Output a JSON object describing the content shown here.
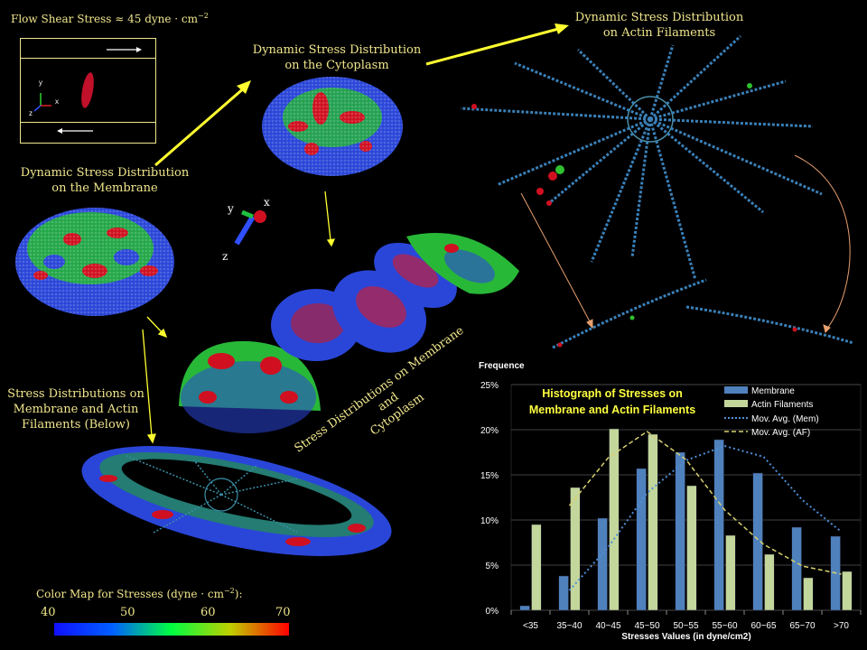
{
  "flow_title_prefix": "Flow Shear Stress ≈ 45 dyne · cm",
  "flow_title_exp": "−2",
  "inset_axes": {
    "y": "y",
    "x": "x",
    "z": "z"
  },
  "membrane_label_1": "Dynamic Stress Distribution",
  "membrane_label_2": "on the Membrane",
  "cytoplasm_label_1": "Dynamic Stress Distribution",
  "cytoplasm_label_2": "on the Cytoplasm",
  "actin_label_1": "Dynamic Stress Distribution",
  "actin_label_2": "on Actin Filaments",
  "axes3d": {
    "y": "y",
    "x": "x",
    "z": "z"
  },
  "below_label_1": "Stress Distributions on",
  "below_label_2": "Membrane and  Actin",
  "below_label_3": "Filaments (Below)",
  "rotated_label_1": "Stress Distributions on Membrane and",
  "rotated_label_2": "Cytoplasm",
  "colormap": {
    "title_prefix": "Color Map for Stresses  (dyne · cm",
    "title_exp": "−2",
    "title_suffix": "):",
    "ticks": [
      "40",
      "50",
      "60",
      "70"
    ],
    "colors": [
      "#1010ff",
      "#00ff40",
      "#ff0000"
    ]
  },
  "chart_data": {
    "type": "bar",
    "title_line1": "Histograph of Stresses on",
    "title_line2": "Membrane and Actin Filaments",
    "ylabel": "Frequence",
    "xlabel": "Stresses Values (in dyne/cm2)",
    "categories": [
      "<35",
      "35~40",
      "40~45",
      "45~50",
      "50~55",
      "55~60",
      "60~65",
      "65~70",
      ">70"
    ],
    "yticks": [
      "0%",
      "5%",
      "10%",
      "15%",
      "20%",
      "25%"
    ],
    "ylim": [
      0,
      25
    ],
    "series": [
      {
        "name": "Membrane",
        "color": "#4f81bd",
        "values": [
          0.5,
          3.8,
          10.2,
          15.7,
          17.5,
          18.9,
          15.2,
          9.2,
          8.2
        ]
      },
      {
        "name": "Actin Filaments",
        "color": "#c3d69b",
        "values": [
          9.5,
          13.6,
          20.1,
          19.5,
          13.8,
          8.3,
          6.2,
          3.6,
          4.3
        ]
      }
    ],
    "trendlines": [
      {
        "name": "Mov. Avg. (Mem)",
        "color": "#4f8fd8",
        "values": [
          null,
          2.2,
          7.0,
          13.0,
          16.6,
          18.2,
          17.0,
          12.2,
          8.7
        ]
      },
      {
        "name": "Mov. Avg. (AF)",
        "color": "#d8d070",
        "values": [
          null,
          11.6,
          16.9,
          19.8,
          16.7,
          11.1,
          7.3,
          4.9,
          4.0
        ]
      }
    ],
    "legend_position": "top-right"
  }
}
